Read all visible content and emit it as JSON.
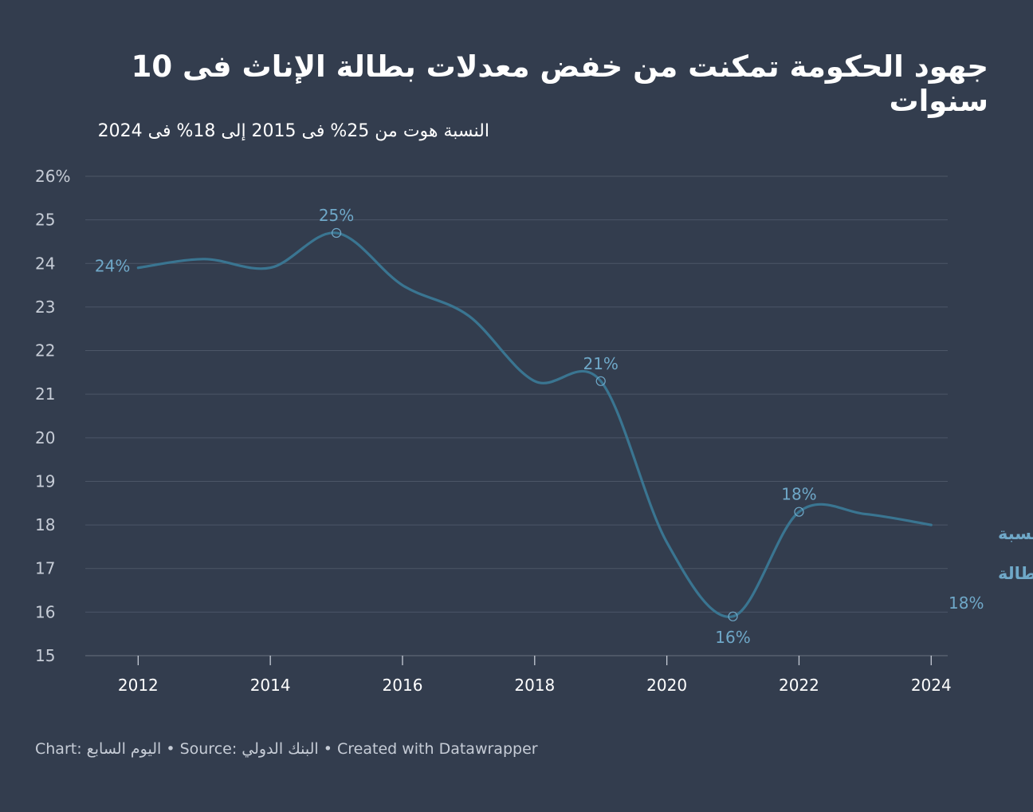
{
  "title": "جهود الحكومة تمكنت من خفض معدلات بطالة الإناث فى 10 سنوات",
  "subtitle": "النسبة هوت من 25% فى 2015 إلى 18% فى 2024",
  "footer": {
    "chart_prefix": "Chart: ",
    "chart_value": "اليوم السابع",
    "source_prefix": " • Source: ",
    "source_value": "البنك الدولي",
    "created": " • Created with Datawrapper"
  },
  "colors": {
    "background": "#333d4e",
    "line": "#3a7591",
    "label": "#6fa8c8",
    "grid": "#4c5667",
    "tick_text": "#c6ccd6"
  },
  "chart_data": {
    "type": "line",
    "x": [
      2012,
      2013,
      2014,
      2015,
      2016,
      2017,
      2018,
      2019,
      2020,
      2021,
      2022,
      2023,
      2024
    ],
    "y": [
      23.9,
      24.1,
      23.9,
      24.7,
      23.5,
      22.8,
      21.3,
      21.3,
      17.6,
      15.9,
      18.3,
      18.25,
      18.0
    ],
    "ylim": [
      15,
      26
    ],
    "xlim": [
      2011.2,
      2024.25
    ],
    "y_ticks": [
      15,
      16,
      17,
      18,
      19,
      20,
      21,
      22,
      23,
      24,
      25,
      26
    ],
    "y_tick_labels": [
      "15",
      "16",
      "17",
      "18",
      "19",
      "20",
      "21",
      "22",
      "23",
      "24",
      "25",
      "26%"
    ],
    "x_ticks": [
      2012,
      2014,
      2016,
      2018,
      2020,
      2022,
      2024
    ],
    "x_tick_labels": [
      "2012",
      "2014",
      "2016",
      "2018",
      "2020",
      "2022",
      "2024"
    ],
    "grid": true,
    "series_label": [
      "نسبة",
      "البطالة"
    ],
    "end_value_label": "18%",
    "annotations": [
      {
        "x": 2012,
        "y": 23.9,
        "text": "24%",
        "marker": false,
        "pos": "left"
      },
      {
        "x": 2015,
        "y": 24.7,
        "text": "25%",
        "marker": true,
        "pos": "above"
      },
      {
        "x": 2019,
        "y": 21.3,
        "text": "21%",
        "marker": true,
        "pos": "above"
      },
      {
        "x": 2021,
        "y": 15.9,
        "text": "16%",
        "marker": true,
        "pos": "below"
      },
      {
        "x": 2022,
        "y": 18.3,
        "text": "18%",
        "marker": true,
        "pos": "above"
      }
    ]
  }
}
